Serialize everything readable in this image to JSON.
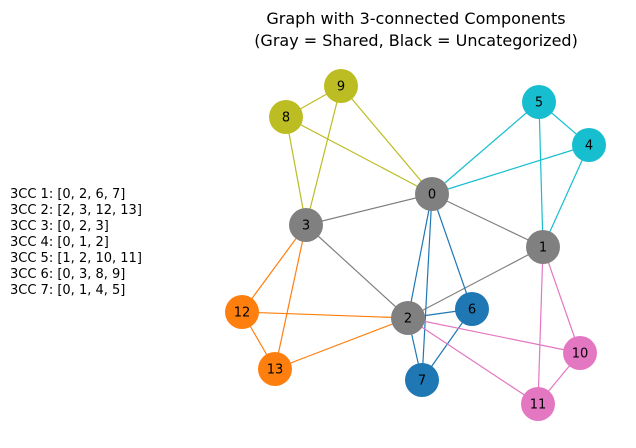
{
  "title_line1": "Graph with 3-connected Components",
  "title_line2": "(Gray = Shared, Black = Uncategorized)",
  "legend": [
    "3CC 1: [0, 2, 6, 7]",
    "3CC 2: [2, 3, 12, 13]",
    "3CC 3: [0, 2, 3]",
    "3CC 4: [0, 1, 2]",
    "3CC 5: [1, 2, 10, 11]",
    "3CC 6: [0, 3, 8, 9]",
    "3CC 7: [0, 1, 4, 5]"
  ],
  "colors": {
    "shared": "#808080",
    "blue": "#1f77b4",
    "orange": "#ff7f0e",
    "pink": "#e377c2",
    "olive": "#bcbd22",
    "cyan": "#17becf"
  },
  "nodes": [
    {
      "id": "0",
      "color": "shared"
    },
    {
      "id": "1",
      "color": "shared"
    },
    {
      "id": "2",
      "color": "shared"
    },
    {
      "id": "3",
      "color": "shared"
    },
    {
      "id": "4",
      "color": "cyan"
    },
    {
      "id": "5",
      "color": "cyan"
    },
    {
      "id": "6",
      "color": "blue"
    },
    {
      "id": "7",
      "color": "blue"
    },
    {
      "id": "8",
      "color": "olive"
    },
    {
      "id": "9",
      "color": "olive"
    },
    {
      "id": "10",
      "color": "pink"
    },
    {
      "id": "11",
      "color": "pink"
    },
    {
      "id": "12",
      "color": "orange"
    },
    {
      "id": "13",
      "color": "orange"
    }
  ],
  "edges": [
    {
      "from": "0",
      "to": "3",
      "color": "shared"
    },
    {
      "from": "0",
      "to": "1",
      "color": "shared"
    },
    {
      "from": "3",
      "to": "2",
      "color": "shared"
    },
    {
      "from": "1",
      "to": "2",
      "color": "shared"
    },
    {
      "from": "0",
      "to": "2",
      "color": "blue"
    },
    {
      "from": "0",
      "to": "6",
      "color": "blue"
    },
    {
      "from": "0",
      "to": "7",
      "color": "blue"
    },
    {
      "from": "2",
      "to": "6",
      "color": "blue"
    },
    {
      "from": "2",
      "to": "7",
      "color": "blue"
    },
    {
      "from": "6",
      "to": "7",
      "color": "blue"
    },
    {
      "from": "3",
      "to": "12",
      "color": "orange"
    },
    {
      "from": "3",
      "to": "13",
      "color": "orange"
    },
    {
      "from": "2",
      "to": "12",
      "color": "orange"
    },
    {
      "from": "2",
      "to": "13",
      "color": "orange"
    },
    {
      "from": "12",
      "to": "13",
      "color": "orange"
    },
    {
      "from": "1",
      "to": "10",
      "color": "pink"
    },
    {
      "from": "1",
      "to": "11",
      "color": "pink"
    },
    {
      "from": "2",
      "to": "10",
      "color": "pink"
    },
    {
      "from": "2",
      "to": "11",
      "color": "pink"
    },
    {
      "from": "10",
      "to": "11",
      "color": "pink"
    },
    {
      "from": "0",
      "to": "8",
      "color": "olive"
    },
    {
      "from": "0",
      "to": "9",
      "color": "olive"
    },
    {
      "from": "3",
      "to": "8",
      "color": "olive"
    },
    {
      "from": "3",
      "to": "9",
      "color": "olive"
    },
    {
      "from": "8",
      "to": "9",
      "color": "olive"
    },
    {
      "from": "0",
      "to": "4",
      "color": "cyan"
    },
    {
      "from": "0",
      "to": "5",
      "color": "cyan"
    },
    {
      "from": "1",
      "to": "4",
      "color": "cyan"
    },
    {
      "from": "1",
      "to": "5",
      "color": "cyan"
    },
    {
      "from": "4",
      "to": "5",
      "color": "cyan"
    }
  ]
}
